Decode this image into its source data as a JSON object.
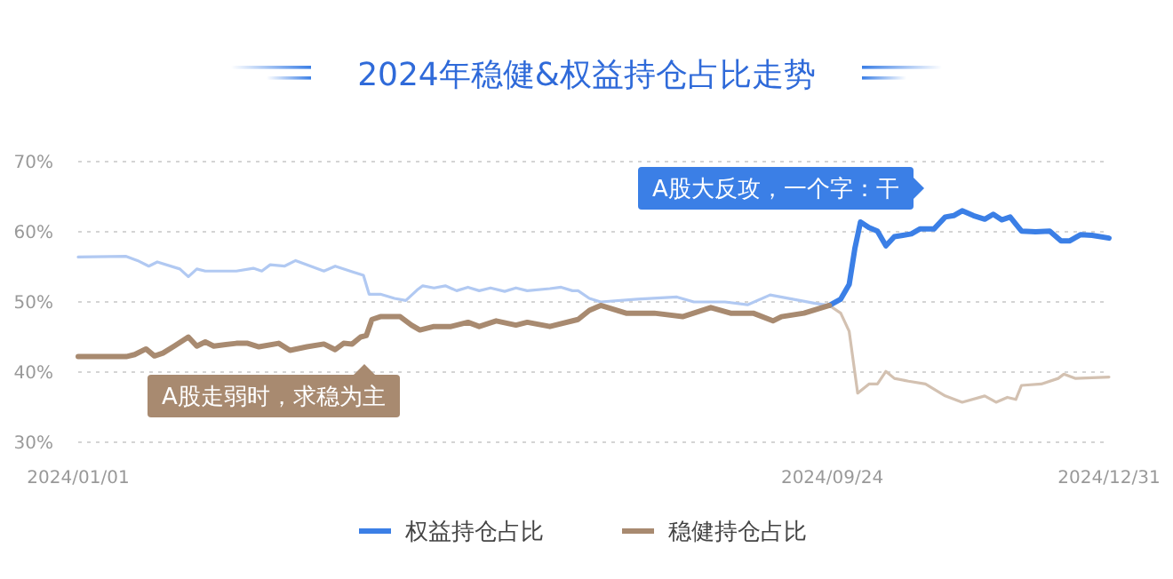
{
  "chart_data": {
    "type": "line",
    "title": "2024年稳健&权益持仓占比走势",
    "xlim": [
      "2024-01-01",
      "2024-12-31"
    ],
    "xticks": [
      {
        "value": "2024-01-01",
        "label": "2024/01/01"
      },
      {
        "value": "2024-09-24",
        "label": "2024/09/24"
      },
      {
        "value": "2024-12-31",
        "label": "2024/12/31"
      }
    ],
    "ylim": [
      30,
      70
    ],
    "yticks": [
      {
        "value": 30,
        "label": "30%"
      },
      {
        "value": 40,
        "label": "40%"
      },
      {
        "value": 50,
        "label": "50%"
      },
      {
        "value": 60,
        "label": "60%"
      },
      {
        "value": 70,
        "label": "70%"
      }
    ],
    "grid": "y",
    "legend": "bottom",
    "line_style": "solid",
    "marker": "none",
    "annotations": [
      "A股走弱时，求稳为主",
      "A股大反攻，一个字：干"
    ],
    "series": [
      {
        "color": "#b1c9f2",
        "x": [
          "2024-01-01",
          "2024-01-18",
          "2024-01-22",
          "2024-01-26",
          "2024-01-29",
          "2024-02-06",
          "2024-02-09",
          "2024-02-12",
          "2024-02-15",
          "2024-02-26",
          "2024-03-03",
          "2024-03-06",
          "2024-03-09",
          "2024-03-14",
          "2024-03-18",
          "2024-03-28",
          "2024-04-01",
          "2024-04-07",
          "2024-04-11",
          "2024-04-13",
          "2024-04-17",
          "2024-04-22",
          "2024-04-26",
          "2024-04-30",
          "2024-05-02",
          "2024-05-06",
          "2024-05-10",
          "2024-05-14",
          "2024-05-18",
          "2024-05-22",
          "2024-05-26",
          "2024-05-31",
          "2024-06-04",
          "2024-06-08",
          "2024-06-16",
          "2024-06-20",
          "2024-06-24",
          "2024-06-26",
          "2024-06-30",
          "2024-07-04",
          "2024-07-17",
          "2024-07-31",
          "2024-08-06",
          "2024-08-17",
          "2024-08-25",
          "2024-09-02",
          "2024-09-10",
          "2024-09-18",
          "2024-09-23"
        ],
        "values": [
          56.4,
          56.5,
          55.9,
          55.1,
          55.7,
          54.7,
          53.6,
          54.7,
          54.4,
          54.4,
          54.8,
          54.4,
          55.3,
          55.1,
          55.9,
          54.4,
          55.1,
          54.3,
          53.8,
          51.1,
          51.1,
          50.5,
          50.2,
          51.7,
          52.3,
          52,
          52.3,
          51.6,
          52.1,
          51.6,
          52,
          51.5,
          52,
          51.6,
          51.9,
          52.1,
          51.6,
          51.6,
          50.5,
          50,
          50.4,
          50.7,
          50,
          50,
          49.6,
          51,
          50.4,
          49.8,
          49.5
        ]
      },
      {
        "name": "权益持仓占比",
        "color": "#3b7fe6",
        "x": [
          "2024-09-23",
          "2024-09-27",
          "2024-09-30",
          "2024-10-02",
          "2024-10-04",
          "2024-10-07",
          "2024-10-10",
          "2024-10-13",
          "2024-10-16",
          "2024-10-19",
          "2024-10-22",
          "2024-10-25",
          "2024-10-30",
          "2024-11-03",
          "2024-11-06",
          "2024-11-09",
          "2024-11-13",
          "2024-11-17",
          "2024-11-20",
          "2024-11-23",
          "2024-11-26",
          "2024-11-30",
          "2024-12-05",
          "2024-12-10",
          "2024-12-14",
          "2024-12-17",
          "2024-12-21",
          "2024-12-25",
          "2024-12-31"
        ],
        "values": [
          49.5,
          50.4,
          52.5,
          57.6,
          61.4,
          60.6,
          60.1,
          58,
          59.3,
          59.5,
          59.7,
          60.4,
          60.4,
          62.1,
          62.3,
          63,
          62.3,
          61.8,
          62.5,
          61.7,
          62.1,
          60.1,
          60,
          60.1,
          58.7,
          58.7,
          59.6,
          59.5,
          59.1
        ]
      },
      {
        "name": "稳健持仓占比",
        "color": "#a88a70",
        "x": [
          "2024-01-01",
          "2024-01-18",
          "2024-01-21",
          "2024-01-25",
          "2024-01-28",
          "2024-01-31",
          "2024-02-04",
          "2024-02-09",
          "2024-02-12",
          "2024-02-15",
          "2024-02-18",
          "2024-02-26",
          "2024-03-01",
          "2024-03-05",
          "2024-03-12",
          "2024-03-16",
          "2024-03-22",
          "2024-03-28",
          "2024-04-01",
          "2024-04-04",
          "2024-04-07",
          "2024-04-10",
          "2024-04-12",
          "2024-04-14",
          "2024-04-17",
          "2024-04-24",
          "2024-04-28",
          "2024-05-01",
          "2024-05-06",
          "2024-05-12",
          "2024-05-18",
          "2024-05-22",
          "2024-05-28",
          "2024-06-04",
          "2024-06-08",
          "2024-06-16",
          "2024-06-26",
          "2024-06-30",
          "2024-07-04",
          "2024-07-13",
          "2024-07-23",
          "2024-08-02",
          "2024-08-12",
          "2024-08-19",
          "2024-08-27",
          "2024-09-03",
          "2024-09-06",
          "2024-09-14",
          "2024-09-23"
        ],
        "values": [
          42.2,
          42.2,
          42.5,
          43.3,
          42.3,
          42.7,
          43.7,
          45,
          43.7,
          44.3,
          43.7,
          44.1,
          44.1,
          43.6,
          44.1,
          43.1,
          43.6,
          44,
          43.2,
          44.1,
          44,
          45,
          45.2,
          47.5,
          47.9,
          47.9,
          46.7,
          46,
          46.5,
          46.5,
          47.1,
          46.5,
          47.3,
          46.7,
          47.1,
          46.5,
          47.5,
          48.8,
          49.5,
          48.4,
          48.4,
          47.9,
          49.2,
          48.4,
          48.4,
          47.3,
          47.9,
          48.4,
          49.5
        ]
      },
      {
        "color": "#d3c1b1",
        "x": [
          "2024-09-23",
          "2024-09-27",
          "2024-09-30",
          "2024-10-03",
          "2024-10-07",
          "2024-10-10",
          "2024-10-13",
          "2024-10-16",
          "2024-10-21",
          "2024-10-27",
          "2024-11-03",
          "2024-11-09",
          "2024-11-17",
          "2024-11-21",
          "2024-11-25",
          "2024-11-28",
          "2024-11-30",
          "2024-12-07",
          "2024-12-13",
          "2024-12-15",
          "2024-12-19",
          "2024-12-31"
        ],
        "values": [
          49.5,
          48.4,
          45.8,
          37,
          38.3,
          38.3,
          40.1,
          39.1,
          38.7,
          38.3,
          36.6,
          35.7,
          36.6,
          35.7,
          36.4,
          36.1,
          38.1,
          38.3,
          39.1,
          39.7,
          39.1,
          39.3
        ]
      }
    ]
  }
}
